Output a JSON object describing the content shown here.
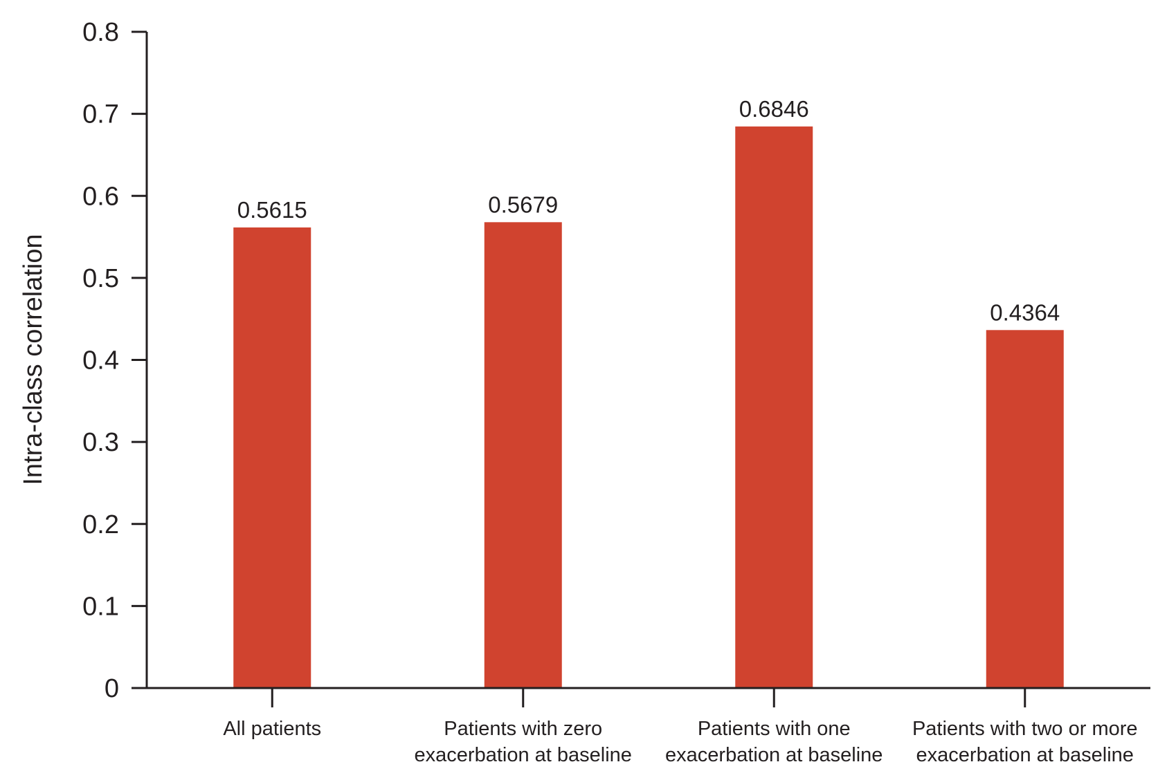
{
  "chart_data": {
    "type": "bar",
    "categories": [
      [
        "All patients"
      ],
      [
        "Patients with zero",
        "exacerbation at baseline"
      ],
      [
        "Patients with one",
        "exacerbation at baseline"
      ],
      [
        "Patients with two or more",
        "exacerbation at baseline"
      ]
    ],
    "values": [
      0.5615,
      0.5679,
      0.6846,
      0.4364
    ],
    "data_labels": [
      "0.5615",
      "0.5679",
      "0.6846",
      "0.4364"
    ],
    "ylabel": "Intra-class correlation",
    "xlabel": "",
    "ylim": [
      0,
      0.8
    ],
    "yticks": [
      0,
      0.1,
      0.2,
      0.3,
      0.4,
      0.5,
      0.6,
      0.7,
      0.8
    ],
    "ytick_labels": [
      "0",
      "0.1",
      "0.2",
      "0.3",
      "0.4",
      "0.5",
      "0.6",
      "0.7",
      "0.8"
    ],
    "bar_color": "#d0432f",
    "grid": false,
    "legend": "none"
  }
}
